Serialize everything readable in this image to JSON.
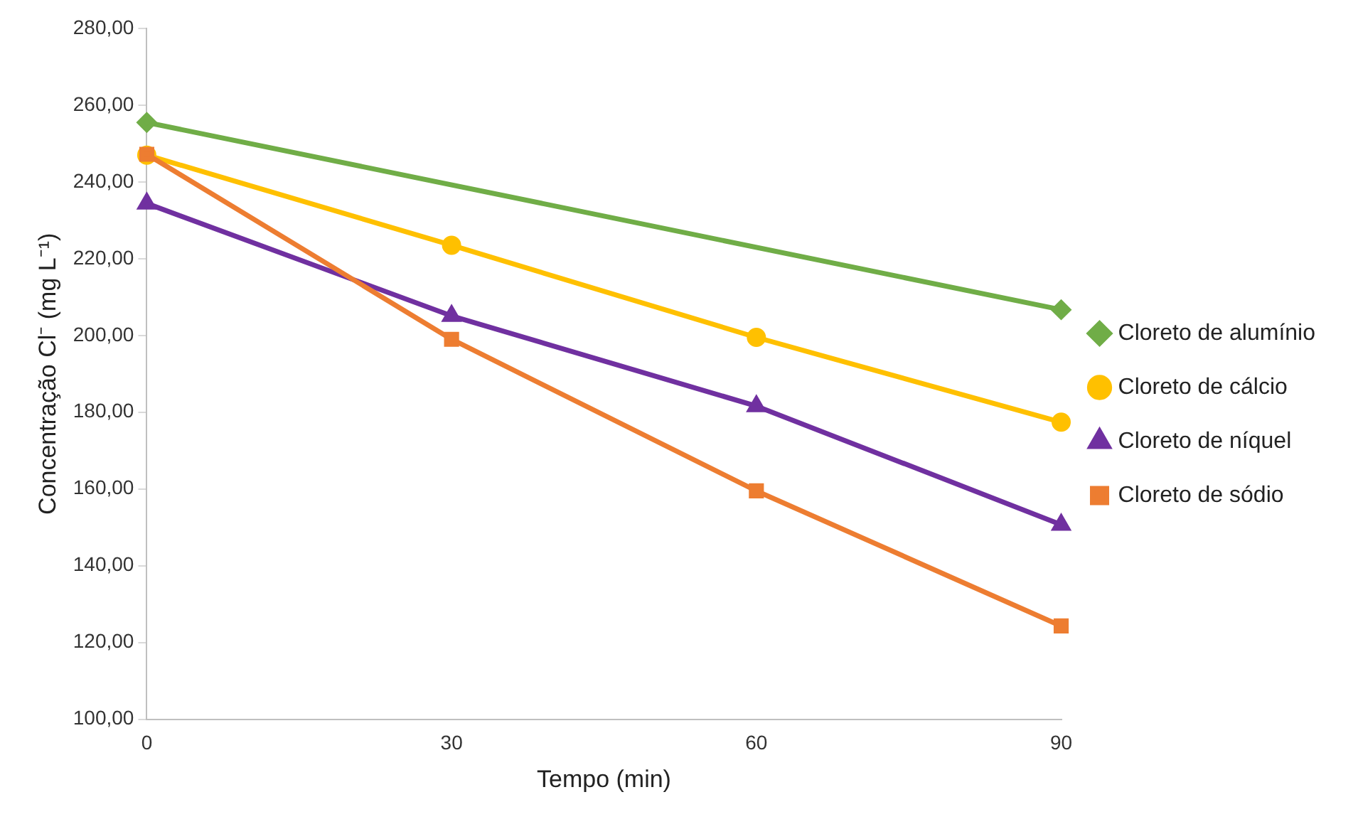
{
  "chart_data": {
    "type": "line",
    "xlabel": "Tempo (min)",
    "ylabel": "Concentração Cl⁻ (mg L⁻¹)",
    "xlim": [
      0,
      90
    ],
    "xticks": [
      0,
      30,
      60,
      90
    ],
    "ylim": [
      100,
      280
    ],
    "yticks": [
      {
        "value": 100,
        "label": "100,00"
      },
      {
        "value": 120,
        "label": "120,00"
      },
      {
        "value": 140,
        "label": "140,00"
      },
      {
        "value": 160,
        "label": "160,00"
      },
      {
        "value": 180,
        "label": "180,00"
      },
      {
        "value": 200,
        "label": "200,00"
      },
      {
        "value": 220,
        "label": "220,00"
      },
      {
        "value": 240,
        "label": "240,00"
      },
      {
        "value": 260,
        "label": "260,00"
      },
      {
        "value": 280,
        "label": "280,00"
      }
    ],
    "grid": false,
    "legend": "right",
    "series": [
      {
        "name": "Cloreto de alumínio",
        "color": "#70ad47",
        "marker": "diamond",
        "x": [
          0,
          90
        ],
        "values": [
          255.5,
          206.7
        ]
      },
      {
        "name": "Cloreto de cálcio",
        "color": "#ffc000",
        "marker": "circle",
        "x": [
          0,
          30,
          60,
          90
        ],
        "values": [
          247,
          223.5,
          199.5,
          177.4
        ]
      },
      {
        "name": "Cloreto de níquel",
        "color": "#7030a0",
        "marker": "triangle",
        "x": [
          0,
          30,
          60,
          90
        ],
        "values": [
          234.4,
          205.1,
          181.6,
          150.7
        ]
      },
      {
        "name": "Cloreto de sódio",
        "color": "#ed7d31",
        "marker": "square",
        "x": [
          0,
          30,
          60,
          90
        ],
        "values": [
          247.2,
          199,
          159.5,
          124.3
        ]
      }
    ]
  }
}
